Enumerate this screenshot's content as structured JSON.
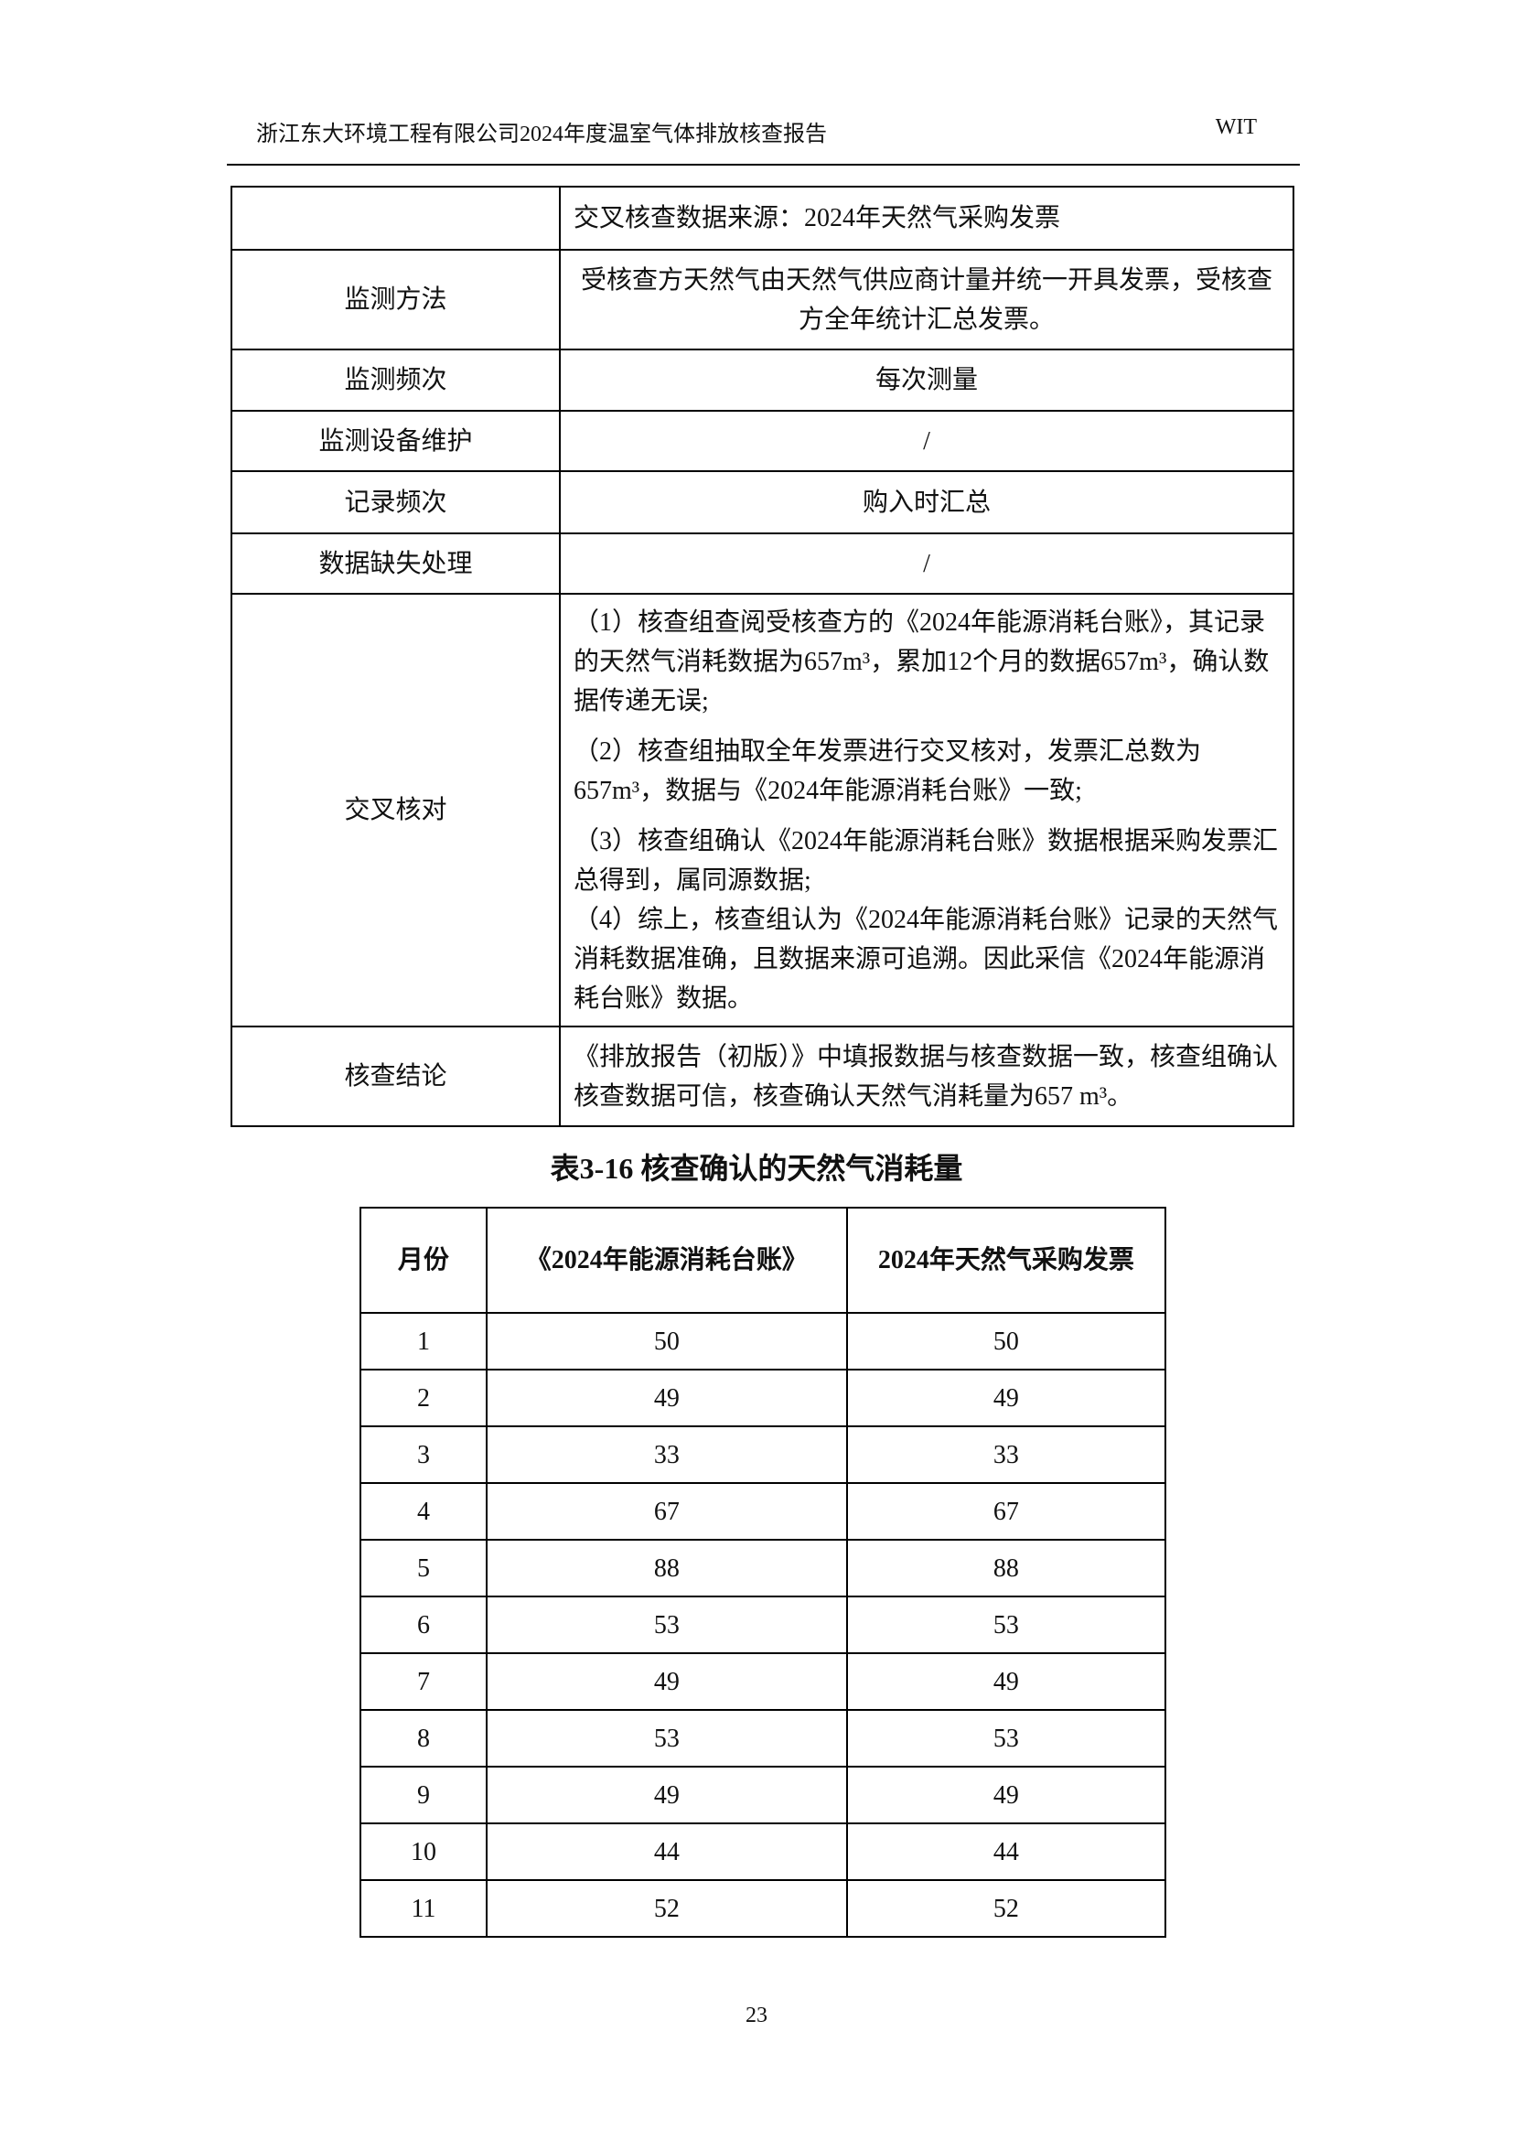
{
  "header": {
    "title": "浙江东大环境工程有限公司2024年度温室气体排放核查报告",
    "right": "WIT"
  },
  "table1": {
    "top_cell": "交叉核查数据来源：2024年天然气采购发票",
    "rows": [
      {
        "label": "监测方法",
        "value": "受核查方天然气由天然气供应商计量并统一开具发票，受核查方全年统计汇总发票。"
      },
      {
        "label": "监测频次",
        "value": "每次测量"
      },
      {
        "label": "监测设备维护",
        "value": "/"
      },
      {
        "label": "记录频次",
        "value": "购入时汇总"
      },
      {
        "label": "数据缺失处理",
        "value": "/"
      }
    ],
    "cross_check": {
      "label": "交叉核对",
      "items": [
        "（1）核查组查阅受核查方的《2024年能源消耗台账》，其记录的天然气消耗数据为657m³，累加12个月的数据657m³，确认数据传递无误;",
        "（2）核查组抽取全年发票进行交叉核对，发票汇总数为657m³，数据与《2024年能源消耗台账》一致;",
        "（3）核查组确认《2024年能源消耗台账》数据根据采购发票汇总得到，属同源数据;",
        "（4）综上，核查组认为《2024年能源消耗台账》记录的天然气消耗数据准确，且数据来源可追溯。因此采信《2024年能源消耗台账》数据。"
      ]
    },
    "conclusion": {
      "label": "核查结论",
      "value": "《排放报告（初版）》中填报数据与核查数据一致，核查组确认核查数据可信，核查确认天然气消耗量为657 m³。"
    }
  },
  "caption": "表3-16 核查确认的天然气消耗量",
  "table2": {
    "headers": [
      "月份",
      "《2024年能源消耗台账》",
      "2024年天然气采购发票"
    ],
    "rows": [
      [
        "1",
        "50",
        "50"
      ],
      [
        "2",
        "49",
        "49"
      ],
      [
        "3",
        "33",
        "33"
      ],
      [
        "4",
        "67",
        "67"
      ],
      [
        "5",
        "88",
        "88"
      ],
      [
        "6",
        "53",
        "53"
      ],
      [
        "7",
        "49",
        "49"
      ],
      [
        "8",
        "53",
        "53"
      ],
      [
        "9",
        "49",
        "49"
      ],
      [
        "10",
        "44",
        "44"
      ],
      [
        "11",
        "52",
        "52"
      ]
    ]
  },
  "page_number": "23"
}
